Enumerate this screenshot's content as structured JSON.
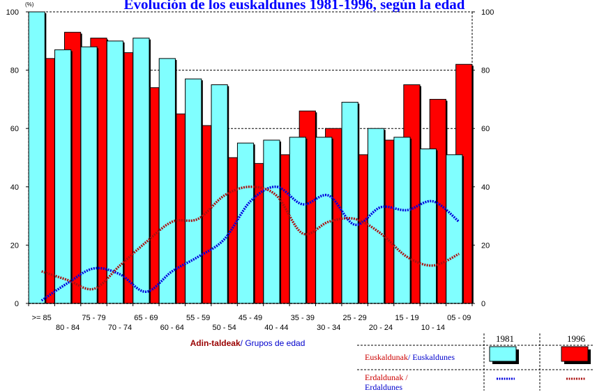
{
  "chart_data": {
    "type": "bar",
    "title": "Evolución de los euskaldunes 1981-1996, según la edad",
    "y_unit": "(%)",
    "ylim": [
      0,
      100
    ],
    "y_ticks": [
      0,
      20,
      40,
      60,
      80,
      100
    ],
    "grid": "horizontal dashed",
    "xlabel_part1": "Adin-taldeak",
    "xlabel_sep": "/ ",
    "xlabel_part2": "Grupos de edad",
    "categories": [
      ">= 85",
      "80 - 84",
      "75 - 79",
      "70 - 74",
      "65 - 69",
      "60 - 64",
      "55 - 59",
      "50 - 54",
      "45 - 49",
      "40 - 44",
      "35 - 39",
      "30 - 34",
      "25 - 29",
      "20 - 24",
      "15 - 19",
      "10 - 14",
      "05 - 09"
    ],
    "series": [
      {
        "name": "Euskaldunak/ Euskaldunes 1981",
        "type": "bar",
        "color": "#80ffff",
        "values": [
          100,
          87,
          88,
          90,
          91,
          84,
          77,
          75,
          55,
          56,
          57,
          57,
          69,
          60,
          57,
          53,
          51
        ]
      },
      {
        "name": "Euskaldunak/ Euskaldunes 1996",
        "type": "bar",
        "color": "#ff0000",
        "values": [
          84,
          93,
          91,
          86,
          74,
          65,
          61,
          50,
          48,
          51,
          66,
          60,
          51,
          56,
          75,
          70,
          82
        ]
      },
      {
        "name": "Erdaldunak / Erdaldunes 1981",
        "type": "line",
        "style": "dotted",
        "color": "#0000dd",
        "values": [
          1,
          7,
          12,
          10,
          4,
          11,
          16,
          22,
          35,
          40,
          34,
          37,
          27,
          33,
          32,
          35,
          28
        ]
      },
      {
        "name": "Erdaldunak / Erdaldunes 1996",
        "type": "line",
        "style": "dotted",
        "color": "#aa1111",
        "values": [
          11,
          8,
          5,
          13,
          21,
          28,
          29,
          37,
          40,
          37,
          24,
          28,
          29,
          24,
          16,
          13,
          17
        ]
      }
    ],
    "legend": {
      "col_1981": "1981",
      "col_1996": "1996",
      "row1_part1": "Euskaldunak",
      "row1_part2": "/ Euskaldunes",
      "row2_line1": "Erdaldunak /",
      "row2_line2": "Erdaldunes",
      "placement": "bottom-right"
    }
  }
}
